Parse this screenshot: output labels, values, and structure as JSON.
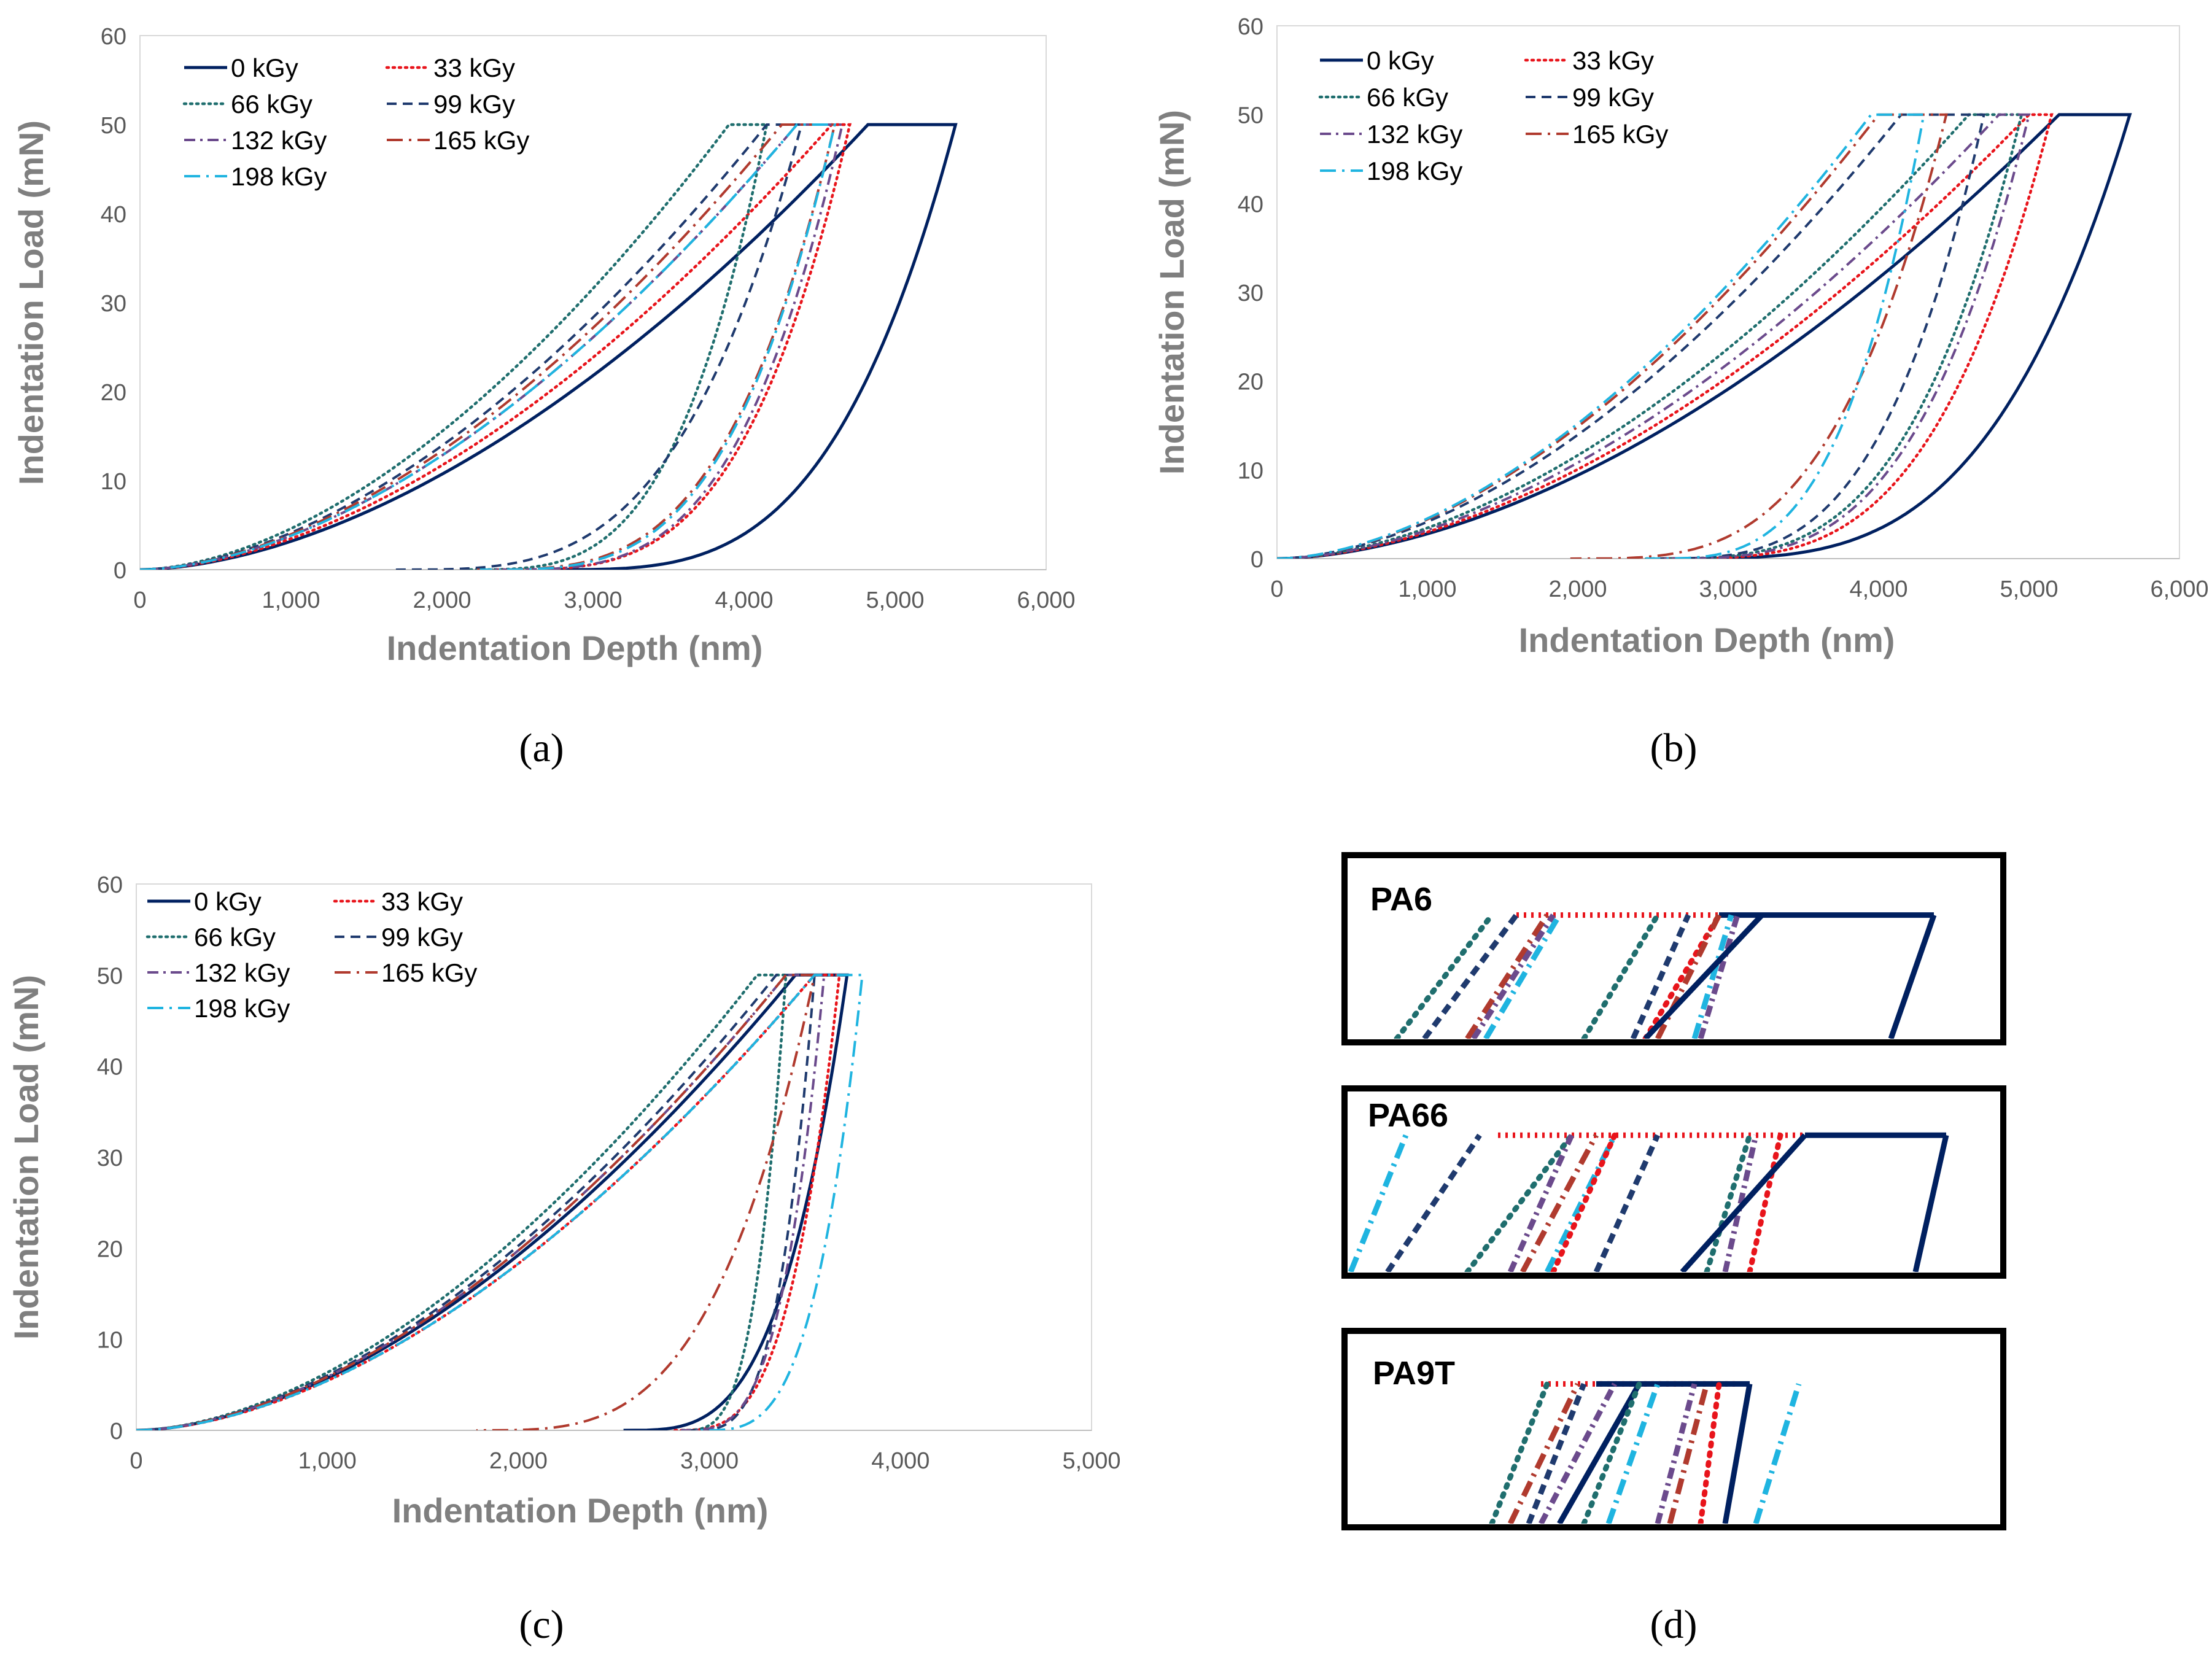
{
  "series_styles": [
    {
      "key": "0kGy",
      "color": "#002060",
      "dash": "",
      "width": 5
    },
    {
      "key": "33kGy",
      "color": "#e8141b",
      "dash": "3,7",
      "width": 4.5
    },
    {
      "key": "66kGy",
      "color": "#1f6e6e",
      "dash": "3,7",
      "width": 4.5
    },
    {
      "key": "99kGy",
      "color": "#1f3a6e",
      "dash": "16,10",
      "width": 4
    },
    {
      "key": "132kGy",
      "color": "#6b4a8c",
      "dash": "18,8,4,8",
      "width": 4
    },
    {
      "key": "165kGy",
      "color": "#b03a2e",
      "dash": "26,10,4,10",
      "width": 4
    },
    {
      "key": "198kGy",
      "color": "#1fb4e0",
      "dash": "26,10,4,10",
      "width": 4
    }
  ],
  "chart_data": [
    {
      "panel": "a",
      "caption": "(a)",
      "type": "line",
      "xlabel": "Indentation Depth (nm)",
      "ylabel": "Indentation Load (mN)",
      "xlim": [
        0,
        6000
      ],
      "ylim": [
        0,
        60
      ],
      "xticks": [
        0,
        1000,
        2000,
        3000,
        4000,
        5000,
        6000
      ],
      "xtick_labels": [
        "0",
        "1,000",
        "2,000",
        "3,000",
        "4,000",
        "5,000",
        "6,000"
      ],
      "yticks": [
        0,
        10,
        20,
        30,
        40,
        50,
        60
      ],
      "ytick_labels": [
        "0",
        "10",
        "20",
        "30",
        "40",
        "50",
        "60"
      ],
      "legend": [
        "0 kGy",
        "33 kGy",
        "66 kGy",
        "99 kGy",
        "132 kGy",
        "165 kGy",
        "198 kGy"
      ],
      "series": [
        {
          "name": "0 kGy",
          "load_end_x": 4820,
          "plateau_end_x": 5400,
          "unload_zero_x": 2700
        },
        {
          "name": "33 kGy",
          "load_end_x": 4580,
          "plateau_end_x": 4700,
          "unload_zero_x": 2350
        },
        {
          "name": "66 kGy",
          "load_end_x": 3900,
          "plateau_end_x": 4150,
          "unload_zero_x": 2150
        },
        {
          "name": "99 kGy",
          "load_end_x": 4150,
          "plateau_end_x": 4380,
          "unload_zero_x": 1680
        },
        {
          "name": "132 kGy",
          "load_end_x": 4350,
          "plateau_end_x": 4650,
          "unload_zero_x": 2350
        },
        {
          "name": "165 kGy",
          "load_end_x": 4250,
          "plateau_end_x": 4600,
          "unload_zero_x": 2200
        },
        {
          "name": "198 kGy",
          "load_end_x": 4350,
          "plateau_end_x": 4600,
          "unload_zero_x": 2250
        }
      ]
    },
    {
      "panel": "b",
      "caption": "(b)",
      "type": "line",
      "xlabel": "Indentation Depth (nm)",
      "ylabel": "Indentation Load (mN)",
      "xlim": [
        0,
        6000
      ],
      "ylim": [
        0,
        60
      ],
      "xticks": [
        0,
        1000,
        2000,
        3000,
        4000,
        5000,
        6000
      ],
      "xtick_labels": [
        "0",
        "1,000",
        "2,000",
        "3,000",
        "4,000",
        "5,000",
        "6,000"
      ],
      "yticks": [
        0,
        10,
        20,
        30,
        40,
        50,
        60
      ],
      "ytick_labels": [
        "0",
        "10",
        "20",
        "30",
        "40",
        "50",
        "60"
      ],
      "legend": [
        "0 kGy",
        "33 kGy",
        "66 kGy",
        "99 kGy",
        "132 kGy",
        "165 kGy",
        "198 kGy"
      ],
      "series": [
        {
          "name": "0 kGy",
          "load_end_x": 5200,
          "plateau_end_x": 5670,
          "unload_zero_x": 2600
        },
        {
          "name": "33 kGy",
          "load_end_x": 5000,
          "plateau_end_x": 5150,
          "unload_zero_x": 2550
        },
        {
          "name": "66 kGy",
          "load_end_x": 4600,
          "plateau_end_x": 4950,
          "unload_zero_x": 2450
        },
        {
          "name": "99 kGy",
          "load_end_x": 4150,
          "plateau_end_x": 4700,
          "unload_zero_x": 2450
        },
        {
          "name": "132 kGy",
          "load_end_x": 4800,
          "plateau_end_x": 5000,
          "unload_zero_x": 2500
        },
        {
          "name": "165 kGy",
          "load_end_x": 4000,
          "plateau_end_x": 4450,
          "unload_zero_x": 1950
        },
        {
          "name": "198 kGy",
          "load_end_x": 3950,
          "plateau_end_x": 4300,
          "unload_zero_x": 2450
        }
      ]
    },
    {
      "panel": "c",
      "caption": "(c)",
      "type": "line",
      "xlabel": "Indentation Depth (nm)",
      "ylabel": "Indentation Load (mN)",
      "xlim": [
        0,
        5000
      ],
      "ylim": [
        0,
        60
      ],
      "xticks": [
        0,
        1000,
        2000,
        3000,
        4000,
        5000
      ],
      "xtick_labels": [
        "0",
        "1,000",
        "2,000",
        "3,000",
        "4,000",
        "5,000"
      ],
      "yticks": [
        0,
        10,
        20,
        30,
        40,
        50,
        60
      ],
      "ytick_labels": [
        "0",
        "10",
        "20",
        "30",
        "40",
        "50",
        "60"
      ],
      "legend": [
        "0 kGy",
        "33 kGy",
        "66 kGy",
        "99 kGy",
        "132 kGy",
        "165 kGy",
        "198 kGy"
      ],
      "series": [
        {
          "name": "0 kGy",
          "load_end_x": 3450,
          "plateau_end_x": 3720,
          "unload_zero_x": 2550
        },
        {
          "name": "33 kGy",
          "load_end_x": 3550,
          "plateau_end_x": 3680,
          "unload_zero_x": 2800
        },
        {
          "name": "66 kGy",
          "load_end_x": 3250,
          "plateau_end_x": 3400,
          "unload_zero_x": 2850
        },
        {
          "name": "99 kGy",
          "load_end_x": 3350,
          "plateau_end_x": 3550,
          "unload_zero_x": 2900
        },
        {
          "name": "132 kGy",
          "load_end_x": 3400,
          "plateau_end_x": 3600,
          "unload_zero_x": 2850
        },
        {
          "name": "165 kGy",
          "load_end_x": 3400,
          "plateau_end_x": 3550,
          "unload_zero_x": 1780
        },
        {
          "name": "198 kGy",
          "load_end_x": 3550,
          "plateau_end_x": 3800,
          "unload_zero_x": 2950
        }
      ]
    }
  ],
  "panel_d": {
    "caption": "(d)",
    "insets": [
      {
        "title": "PA6",
        "kind": "zoom of the 50 mN peak region for PA6"
      },
      {
        "title": "PA66",
        "kind": "zoom of the 50 mN peak region for PA66"
      },
      {
        "title": "PA9T",
        "kind": "zoom of the 50 mN peak region for PA9T"
      }
    ]
  }
}
